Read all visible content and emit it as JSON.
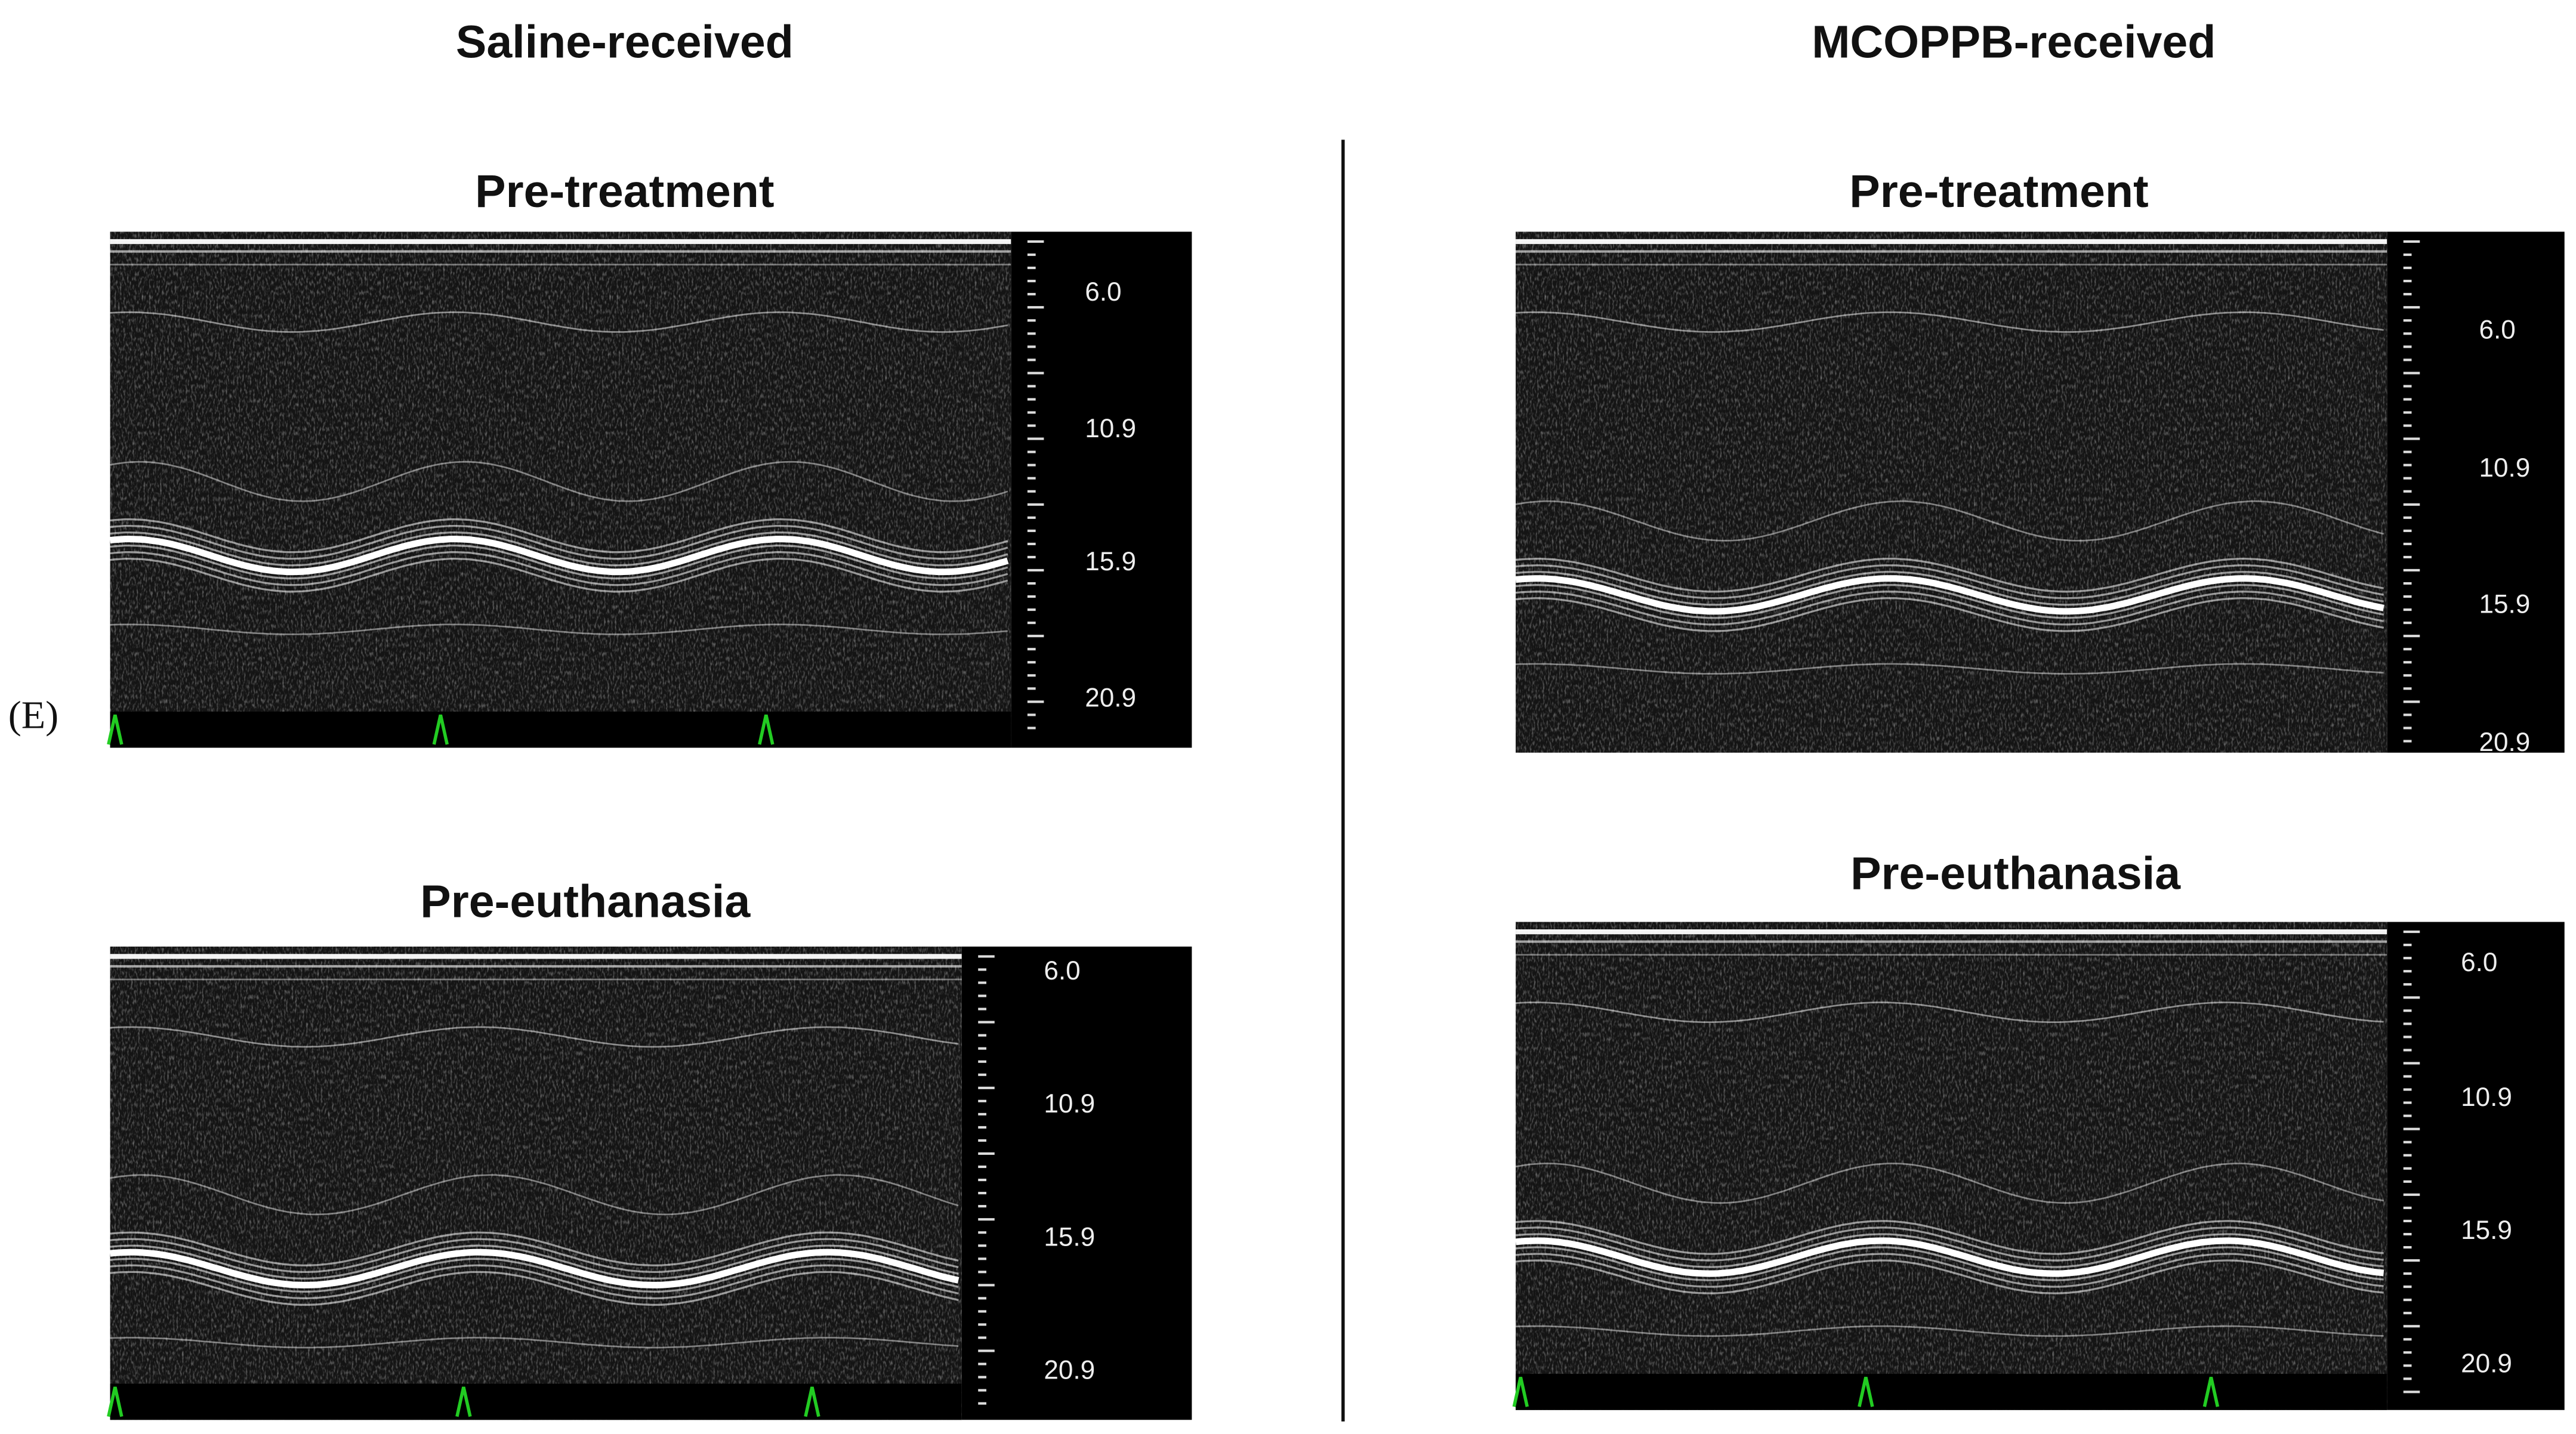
{
  "figure_label": "(E)",
  "columns": [
    {
      "title": "Saline-received",
      "panels": [
        {
          "title": "Pre-treatment",
          "depth_labels": [
            "6.0",
            "10.9",
            "15.9",
            "20.9"
          ]
        },
        {
          "title": "Pre-euthanasia",
          "depth_labels": [
            "6.0",
            "10.9",
            "15.9",
            "20.9"
          ]
        }
      ]
    },
    {
      "title": "MCOPPB-received",
      "panels": [
        {
          "title": "Pre-treatment",
          "depth_labels": [
            "6.0",
            "10.9",
            "15.9",
            "20.9"
          ]
        },
        {
          "title": "Pre-euthanasia",
          "depth_labels": [
            "6.0",
            "10.9",
            "15.9",
            "20.9"
          ]
        }
      ]
    }
  ]
}
